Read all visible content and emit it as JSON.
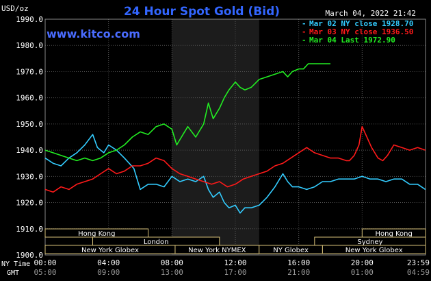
{
  "title": "24 Hour Spot Gold (Bid)",
  "watermark": "www.kitco.com",
  "timestamp": "March 04, 2022 21:42",
  "unit_label": "USD/oz",
  "legend": [
    {
      "label": "Mar 02 NY close 1928.70",
      "color": "#33ccff"
    },
    {
      "label": "Mar 03 NY close 1936.50",
      "color": "#ff1a1a"
    },
    {
      "label": "Mar 04 Last 1972.90",
      "color": "#22ee22"
    }
  ],
  "axis_left_labels": {
    "ny_time": "NY Time",
    "gmt": "GMT"
  },
  "sessions": [
    {
      "label": "Hong Kong",
      "start": 0,
      "end": 6.5,
      "row": 0
    },
    {
      "label": "Hong Kong",
      "start": 20,
      "end": 24,
      "row": 0
    },
    {
      "label": "London",
      "start": 3.0,
      "end": 11.0,
      "row": 1
    },
    {
      "label": "Sydney",
      "start": 17.0,
      "end": 24,
      "row": 1
    },
    {
      "label": "New York Globex",
      "start": 0,
      "end": 8.2,
      "row": 2
    },
    {
      "label": "New York NYMEX",
      "start": 8.2,
      "end": 13.5,
      "row": 2
    },
    {
      "label": "NY Globex",
      "start": 13.5,
      "end": 17.5,
      "row": 2
    },
    {
      "label": "New York Globex",
      "start": 17.5,
      "end": 24,
      "row": 2
    }
  ],
  "chart_data": {
    "type": "line",
    "title": "24 Hour Spot Gold (Bid)",
    "ylabel": "USD/oz",
    "ylim": [
      1900,
      1990
    ],
    "yticks": [
      "1990.0",
      "1980.0",
      "1970.0",
      "1960.0",
      "1950.0",
      "1940.0",
      "1930.0",
      "1920.0",
      "1910.0",
      "1900.0"
    ],
    "xlim": [
      0,
      24
    ],
    "xticks_ny": [
      "00:00",
      "04:00",
      "08:00",
      "12:00",
      "16:00",
      "20:00",
      "23:59"
    ],
    "xticks_gmt": [
      "05:00",
      "09:00",
      "13:00",
      "17:00",
      "21:00",
      "01:00",
      "04:59"
    ],
    "shaded_region": [
      8.0,
      13.5
    ],
    "series": [
      {
        "name": "Mar 02 NY close 1928.70",
        "color": "#33ccff",
        "x": [
          0,
          0.5,
          1,
          1.5,
          2,
          2.5,
          3,
          3.3,
          3.7,
          4,
          4.5,
          5,
          5.3,
          5.6,
          6,
          6.5,
          7,
          7.5,
          8,
          8.5,
          9,
          9.5,
          10,
          10.3,
          10.6,
          11,
          11.3,
          11.6,
          12,
          12.3,
          12.6,
          13,
          13.5,
          14,
          14.5,
          15,
          15.3,
          15.6,
          16,
          16.5,
          17,
          17.5,
          18,
          18.5,
          19,
          19.5,
          20,
          20.5,
          21,
          21.5,
          22,
          22.5,
          23,
          23.5,
          23.99
        ],
        "values": [
          1937,
          1935,
          1934,
          1937,
          1939,
          1942,
          1946,
          1941,
          1939,
          1942,
          1940,
          1937,
          1935,
          1933,
          1925,
          1927,
          1927,
          1926,
          1930,
          1928,
          1929,
          1928,
          1930,
          1925,
          1922,
          1924,
          1920,
          1918,
          1919,
          1916,
          1918,
          1918,
          1919,
          1922,
          1926,
          1931,
          1928,
          1926,
          1926,
          1925,
          1926,
          1928,
          1928,
          1929,
          1929,
          1929,
          1930,
          1929,
          1929,
          1928,
          1929,
          1929,
          1927,
          1927,
          1925
        ]
      },
      {
        "name": "Mar 03 NY close 1936.50",
        "color": "#ff1a1a",
        "x": [
          0,
          0.5,
          1,
          1.5,
          2,
          2.5,
          3,
          3.5,
          4,
          4.5,
          5,
          5.5,
          6,
          6.5,
          7,
          7.5,
          8,
          8.5,
          9,
          9.5,
          10,
          10.5,
          11,
          11.5,
          12,
          12.5,
          13,
          13.5,
          14,
          14.5,
          15,
          15.5,
          16,
          16.5,
          17,
          17.5,
          18,
          18.5,
          19,
          19.2,
          19.5,
          19.8,
          20,
          20.3,
          20.6,
          21,
          21.3,
          21.6,
          22,
          22.5,
          23,
          23.5,
          23.99
        ],
        "values": [
          1925,
          1924,
          1926,
          1925,
          1927,
          1928,
          1929,
          1931,
          1933,
          1931,
          1932,
          1934,
          1934,
          1935,
          1937,
          1936,
          1933,
          1931,
          1930,
          1929,
          1928,
          1927,
          1928,
          1926,
          1927,
          1929,
          1930,
          1931,
          1932,
          1934,
          1935,
          1937,
          1939,
          1941,
          1939,
          1938,
          1937,
          1937,
          1936,
          1936,
          1938,
          1942,
          1949,
          1945,
          1941,
          1937,
          1936,
          1938,
          1942,
          1941,
          1940,
          1941,
          1940
        ]
      },
      {
        "name": "Mar 04 Last 1972.90",
        "color": "#22ee22",
        "x": [
          0,
          0.5,
          1,
          1.5,
          2,
          2.5,
          3,
          3.5,
          4,
          4.5,
          5,
          5.5,
          6,
          6.5,
          7,
          7.5,
          8,
          8.3,
          8.7,
          9,
          9.5,
          10,
          10.3,
          10.6,
          11,
          11.3,
          11.6,
          12,
          12.3,
          12.6,
          13,
          13.5,
          14,
          14.5,
          15,
          15.3,
          15.6,
          16,
          16.3,
          16.6,
          17,
          17.5,
          18
        ],
        "values": [
          1940,
          1939,
          1938,
          1937,
          1936,
          1937,
          1936,
          1937,
          1939,
          1940,
          1942,
          1945,
          1947,
          1946,
          1949,
          1950,
          1948,
          1942,
          1946,
          1949,
          1945,
          1950,
          1958,
          1952,
          1956,
          1960,
          1963,
          1966,
          1964,
          1963,
          1964,
          1967,
          1968,
          1969,
          1970,
          1968,
          1970,
          1971,
          1971,
          1973,
          1973,
          1973,
          1973
        ]
      }
    ]
  }
}
